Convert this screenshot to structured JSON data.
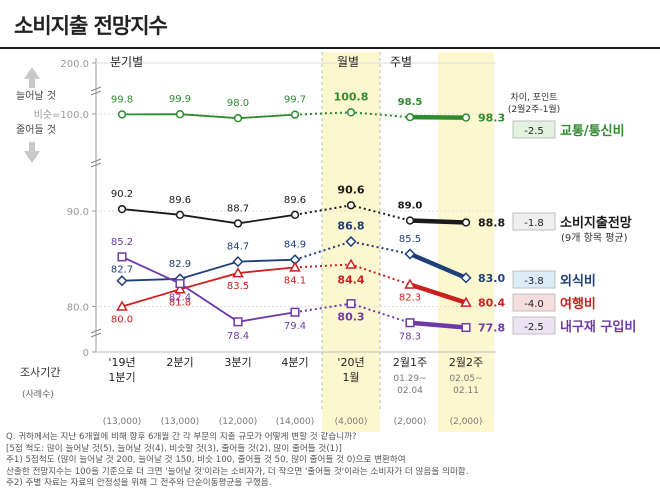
{
  "title": "소비지출 전망지수",
  "chart_data": {
    "type": "line",
    "period_groups": [
      "분기별",
      "월별",
      "주별"
    ],
    "x_axis_title": "조사기간",
    "sample_label": "(사례수)",
    "categories": [
      {
        "label1": "'19년",
        "label2": "1분기",
        "sub": "",
        "n": "(13,000)"
      },
      {
        "label1": "2분기",
        "label2": "",
        "sub": "",
        "n": "(13,000)"
      },
      {
        "label1": "3분기",
        "label2": "",
        "sub": "",
        "n": "(12,000)"
      },
      {
        "label1": "4분기",
        "label2": "",
        "sub": "",
        "n": "(14,000)"
      },
      {
        "label1": "'20년",
        "label2": "1월",
        "sub": "",
        "n": "(4,000)"
      },
      {
        "label1": "2월1주",
        "label2": "",
        "sub": "01.29~ 02.04",
        "n": "(2,000)"
      },
      {
        "label1": "2월2주",
        "label2": "",
        "sub": "02.05~ 02.11",
        "n": "(2,000)"
      }
    ],
    "y_ticks": [
      {
        "value": 200,
        "label": "200.0"
      },
      {
        "value": 100,
        "label": "비슷=100.0"
      },
      {
        "value": 90,
        "label": "90.0"
      },
      {
        "value": 80,
        "label": "80.0"
      },
      {
        "value": 0,
        "label": "0"
      }
    ],
    "arrow_labels": {
      "up": "늘어날 것",
      "down": "줄어들 것"
    },
    "diff_header": [
      "차이, 포인트",
      "(2월2주-1월)"
    ],
    "series": [
      {
        "name": "교통/통신비",
        "sub": "",
        "color": "#2e8b2e",
        "values": [
          99.8,
          99.9,
          98.0,
          99.7,
          100.8,
          98.5,
          98.3
        ],
        "diff": "-2.5",
        "diff_bg": "#e3f2df"
      },
      {
        "name": "소비지출전망",
        "sub": "(9개 항목 평균)",
        "color": "#1a1a1a",
        "values": [
          90.2,
          89.6,
          88.7,
          89.6,
          90.6,
          89.0,
          88.8
        ],
        "diff": "-1.8",
        "diff_bg": "#efefef"
      },
      {
        "name": "외식비",
        "sub": "",
        "color": "#1f3f7a",
        "values": [
          82.7,
          82.9,
          84.7,
          84.9,
          86.8,
          85.5,
          83.0
        ],
        "diff": "-3.8",
        "diff_bg": "#dcecf7"
      },
      {
        "name": "여행비",
        "sub": "",
        "color": "#cc1f1f",
        "values": [
          80.0,
          81.8,
          83.5,
          84.1,
          84.4,
          82.3,
          80.4
        ],
        "diff": "-4.0",
        "diff_bg": "#f7dede"
      },
      {
        "name": "내구재 구입비",
        "sub": "",
        "color": "#6f3aa8",
        "values": [
          85.2,
          82.4,
          78.4,
          79.4,
          80.3,
          78.3,
          77.8
        ],
        "diff": "-2.5",
        "diff_bg": "#ebe3f4"
      }
    ]
  },
  "notes": [
    "Q. 귀하께서는 지난 6개월에 비해 향후 6개월 간 각 부문의 지출 규모가 어떻게 변할 것 같습니까?",
    "   [5점 척도: 많이 늘어날 것(5), 늘어날 것(4), 비슷할 것(3), 줄어들 것(2), 많이 줄어들 것(1)]",
    "주1) 5점척도 (많이 늘어날 것 200, 늘어날 것 150, 비슷 100, 줄어들 것 50, 많이 줄어들 것 0)으로 변환하여",
    "   산출한 전망지수는 100을 기준으로 더 크면 '늘어날 것'이라는 소비자가, 더 작으면 '줄어들 것'이라는 소비자가 더 많음을 의미함.",
    "주2) 주별 자료는 자료의 안정성을 위해 그 전주와 단순이동평균을 구했음."
  ]
}
